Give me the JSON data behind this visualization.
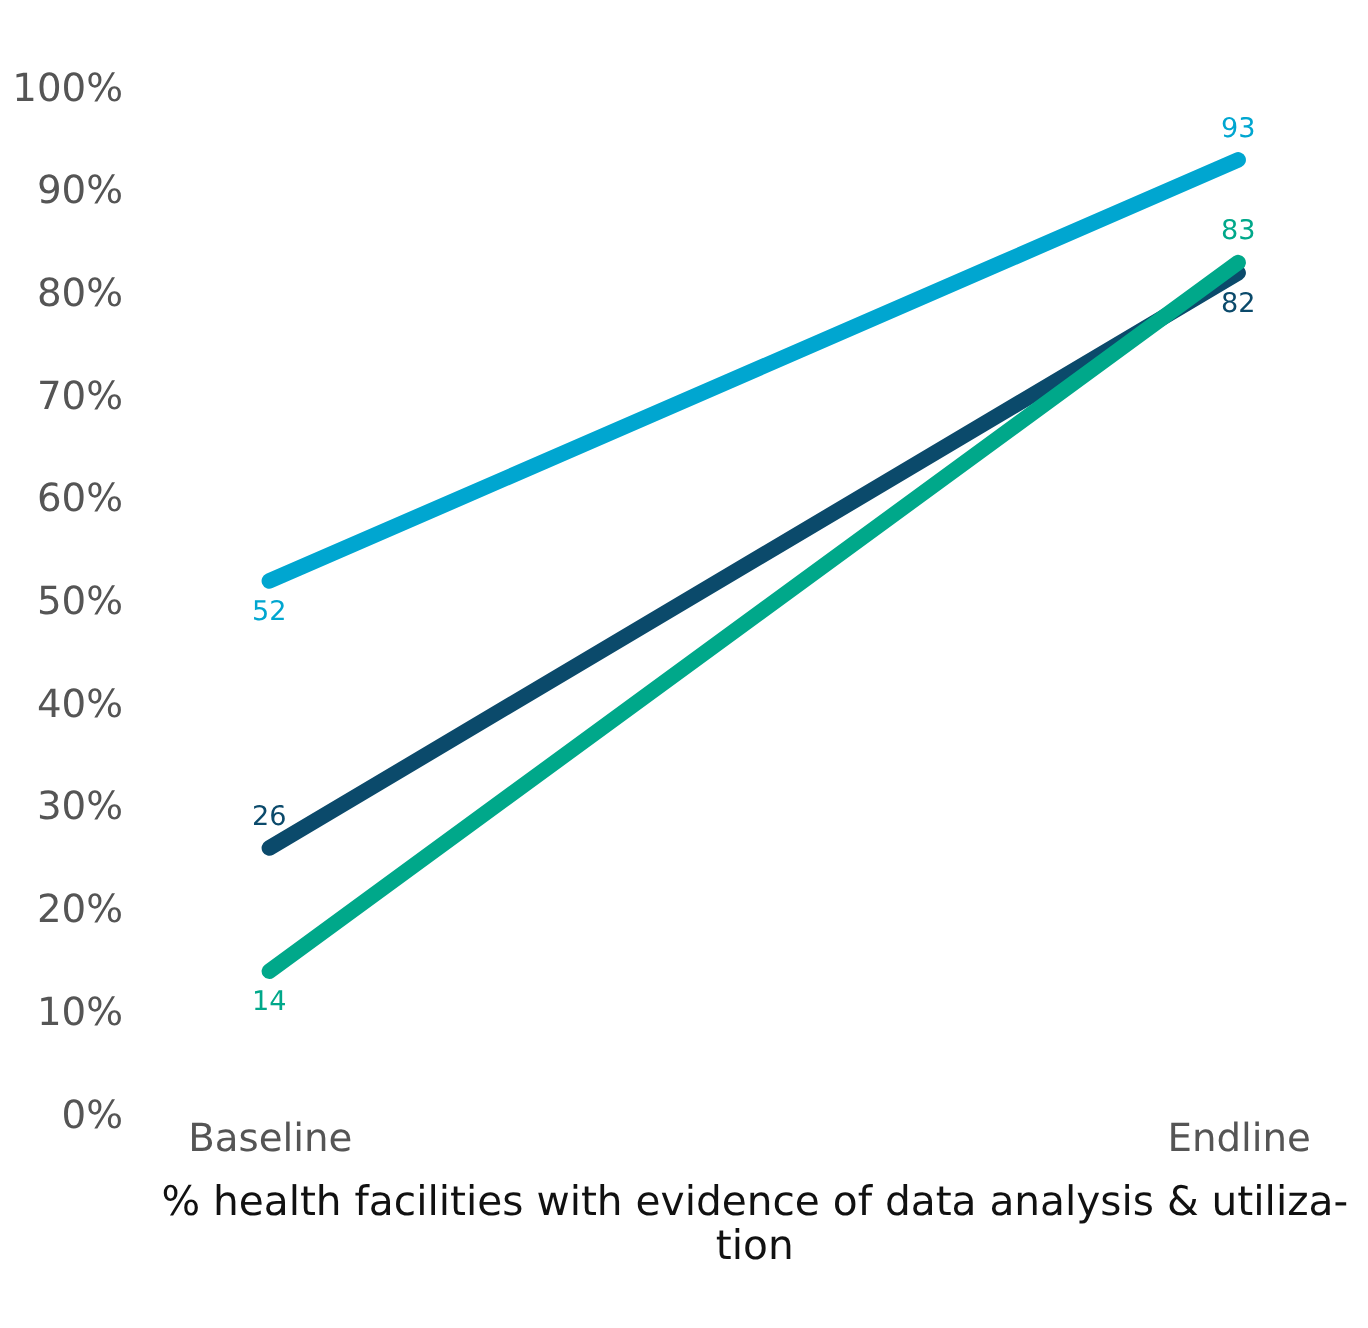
{
  "chart_data": {
    "type": "line",
    "xlabel": "% health facilities with evidence of data analysis & utiliza-\ntion",
    "categories": [
      "Baseline",
      "Endline"
    ],
    "series": [
      {
        "color": "#00a6d0",
        "values": [
          52,
          93
        ]
      },
      {
        "color": "#0b4a6b",
        "values": [
          26,
          82
        ]
      },
      {
        "color": "#00a88a",
        "values": [
          14,
          83
        ]
      }
    ],
    "ylim": [
      0,
      100
    ],
    "yticks": [
      {
        "value": 0,
        "label": "0%"
      },
      {
        "value": 10,
        "label": "10%"
      },
      {
        "value": 20,
        "label": "20%"
      },
      {
        "value": 30,
        "label": "30%"
      },
      {
        "value": 40,
        "label": "40%"
      },
      {
        "value": 50,
        "label": "50%"
      },
      {
        "value": 60,
        "label": "60%"
      },
      {
        "value": 70,
        "label": "70%"
      },
      {
        "value": 80,
        "label": "80%"
      },
      {
        "value": 90,
        "label": "90%"
      },
      {
        "value": 100,
        "label": "100%"
      }
    ],
    "grid": false,
    "marker": "none",
    "line_style": "solid",
    "data_labels": true
  }
}
